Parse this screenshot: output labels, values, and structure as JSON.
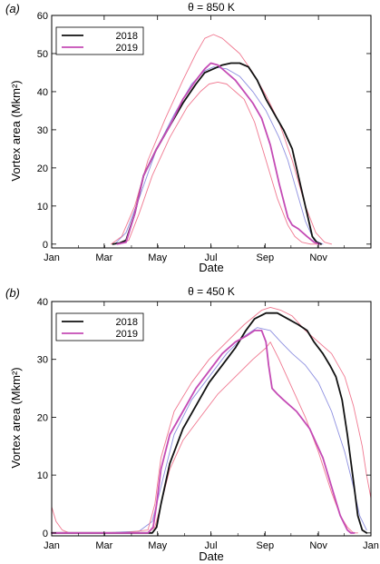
{
  "chart_data": [
    {
      "type": "line",
      "panel_label": "(a)",
      "title": "θ = 850 K",
      "xlabel": "Date",
      "ylabel": "Vortex area (Mkm²)",
      "xlim": [
        0,
        365
      ],
      "ylim": [
        -1,
        60
      ],
      "x_ticks": [
        {
          "x": 0,
          "label": "Jan"
        },
        {
          "x": 60,
          "label": "Mar"
        },
        {
          "x": 121,
          "label": "May"
        },
        {
          "x": 182,
          "label": "Jul"
        },
        {
          "x": 244,
          "label": "Sep"
        },
        {
          "x": 305,
          "label": "Nov"
        }
      ],
      "y_ticks": [
        0,
        10,
        20,
        30,
        40,
        50,
        60
      ],
      "grid": false,
      "legend": {
        "position": "top-left",
        "entries": [
          "2018",
          "2019"
        ]
      },
      "series": [
        {
          "name": "2018",
          "color": "#111111",
          "width": 1.8,
          "x": [
            70,
            78,
            85,
            95,
            105,
            120,
            135,
            150,
            165,
            175,
            185,
            195,
            205,
            215,
            225,
            235,
            245,
            255,
            265,
            275,
            285,
            292,
            298,
            303,
            308
          ],
          "y": [
            0,
            0.3,
            1,
            8,
            18,
            25,
            31,
            37,
            42,
            45,
            46,
            47,
            47.5,
            47.5,
            46.5,
            43,
            38,
            34,
            30,
            25,
            15,
            8,
            2,
            0.5,
            0
          ]
        },
        {
          "name": "2019",
          "color": "#c44bb5",
          "width": 1.8,
          "x": [
            75,
            85,
            95,
            105,
            120,
            135,
            150,
            165,
            175,
            182,
            190,
            200,
            210,
            220,
            230,
            240,
            250,
            260,
            270,
            275,
            282,
            292,
            300,
            306
          ],
          "y": [
            0,
            0.5,
            8,
            18,
            25,
            31,
            38,
            43,
            46,
            47.5,
            47,
            45,
            43,
            40,
            37,
            33,
            26,
            16,
            7,
            5,
            4,
            2,
            0.5,
            0
          ]
        },
        {
          "name": "mean",
          "color": "#8d8fe0",
          "width": 0.9,
          "x": [
            72,
            85,
            100,
            120,
            140,
            160,
            175,
            185,
            200,
            215,
            230,
            245,
            260,
            270,
            280,
            290,
            300,
            310
          ],
          "y": [
            0,
            3,
            12,
            25,
            34,
            42,
            45.5,
            46.5,
            46,
            44,
            40,
            35,
            28,
            22,
            14,
            6,
            1,
            0
          ]
        },
        {
          "name": "upper",
          "color": "#f07890",
          "width": 0.9,
          "x": [
            68,
            80,
            95,
            110,
            130,
            150,
            165,
            175,
            185,
            195,
            205,
            215,
            230,
            245,
            260,
            275,
            290,
            302,
            312,
            320
          ],
          "y": [
            0,
            2,
            10,
            22,
            33,
            43,
            50,
            54,
            55,
            54,
            52,
            50,
            45,
            39,
            32,
            22,
            10,
            3,
            0.5,
            0
          ]
        },
        {
          "name": "lower",
          "color": "#f07890",
          "width": 0.9,
          "x": [
            78,
            88,
            100,
            115,
            135,
            155,
            170,
            180,
            190,
            200,
            210,
            220,
            232,
            245,
            258,
            270,
            278,
            286,
            296,
            305
          ],
          "y": [
            0,
            1,
            8,
            18,
            28,
            36,
            40,
            42,
            42.5,
            42,
            40,
            38,
            32,
            22,
            12,
            5,
            2,
            0.5,
            0,
            0
          ]
        }
      ]
    },
    {
      "type": "line",
      "panel_label": "(b)",
      "title": "θ = 450 K",
      "xlabel": "Date",
      "ylabel": "Vortex area (Mkm²)",
      "xlim": [
        0,
        365
      ],
      "ylim": [
        -0.5,
        40
      ],
      "x_ticks": [
        {
          "x": 0,
          "label": "Jan"
        },
        {
          "x": 60,
          "label": "Mar"
        },
        {
          "x": 121,
          "label": "May"
        },
        {
          "x": 182,
          "label": "Jul"
        },
        {
          "x": 244,
          "label": "Sep"
        },
        {
          "x": 305,
          "label": "Nov"
        },
        {
          "x": 365,
          "label": "Jan"
        }
      ],
      "y_ticks": [
        0,
        10,
        20,
        30,
        40
      ],
      "grid": false,
      "legend": {
        "position": "top-left",
        "entries": [
          "2018",
          "2019"
        ]
      },
      "series": [
        {
          "name": "2018",
          "color": "#111111",
          "width": 1.8,
          "x": [
            0,
            20,
            40,
            60,
            80,
            100,
            108,
            115,
            120,
            125,
            135,
            150,
            165,
            180,
            195,
            210,
            222,
            232,
            245,
            258,
            270,
            282,
            292,
            300,
            310,
            318,
            325,
            332,
            338,
            345,
            350,
            355,
            360
          ],
          "y": [
            0,
            0,
            0,
            0,
            0,
            0,
            0,
            0,
            1,
            5,
            12,
            18,
            22,
            26,
            29,
            32,
            35,
            37,
            38,
            38,
            37,
            36,
            35,
            33,
            31,
            29,
            27,
            23,
            17,
            9,
            3,
            0.5,
            0
          ]
        },
        {
          "name": "2019",
          "color": "#c44bb5",
          "width": 1.8,
          "x": [
            0,
            40,
            80,
            110,
            116,
            120,
            125,
            135,
            150,
            165,
            180,
            195,
            210,
            222,
            232,
            240,
            245,
            248,
            252,
            258,
            265,
            280,
            295,
            310,
            322,
            330,
            338,
            342,
            346
          ],
          "y": [
            0,
            0,
            0,
            0,
            1,
            5,
            11,
            17,
            21,
            25,
            28,
            31,
            33,
            34,
            35,
            35,
            33,
            29,
            25,
            24,
            23,
            21,
            18,
            13,
            7,
            3,
            0.5,
            0,
            0
          ]
        },
        {
          "name": "mean",
          "color": "#8d8fe0",
          "width": 0.9,
          "x": [
            0,
            60,
            100,
            115,
            125,
            140,
            160,
            180,
            200,
            220,
            235,
            250,
            262,
            275,
            290,
            305,
            320,
            335,
            345,
            352,
            360
          ],
          "y": [
            0,
            0,
            0.3,
            2,
            8,
            17,
            23,
            27,
            31,
            34,
            35.5,
            35,
            33,
            31,
            29,
            26,
            21,
            14,
            8,
            3,
            0.5
          ]
        },
        {
          "name": "upper",
          "color": "#f07890",
          "width": 0.9,
          "x": [
            0,
            5,
            12,
            20,
            40,
            80,
            110,
            118,
            125,
            140,
            160,
            180,
            200,
            220,
            240,
            250,
            262,
            275,
            290,
            305,
            320,
            335,
            345,
            355,
            360,
            365
          ],
          "y": [
            4.5,
            2,
            0.5,
            0,
            0,
            0,
            0.5,
            5,
            13,
            21,
            26,
            30,
            33,
            36,
            38.5,
            39,
            38.5,
            37.5,
            35,
            33,
            31,
            27,
            22,
            15,
            10,
            6
          ]
        },
        {
          "name": "lower",
          "color": "#f07890",
          "width": 0.9,
          "x": [
            0,
            60,
            110,
            118,
            125,
            135,
            150,
            170,
            190,
            210,
            230,
            245,
            250,
            260,
            275,
            290,
            305,
            320,
            330,
            338,
            345,
            350
          ],
          "y": [
            0,
            0,
            0,
            1,
            5,
            11,
            16,
            20,
            24,
            27,
            30,
            32,
            33,
            30,
            25,
            20,
            14,
            7,
            3,
            1,
            0,
            0
          ]
        }
      ]
    }
  ]
}
